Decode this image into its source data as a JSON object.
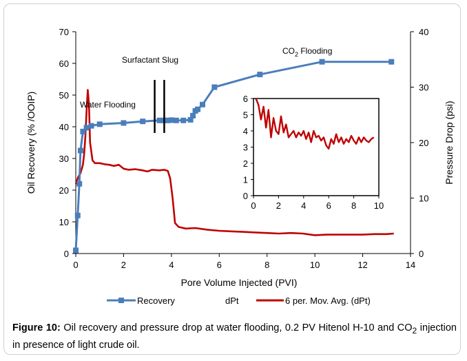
{
  "caption": {
    "label": "Figure 10:",
    "text_pre": " Oil recovery and pressure drop at water flooding, 0.2 PV Hitenol H-10 and CO",
    "sub": "2",
    "text_post": " injection in presence of light crude oil."
  },
  "colors": {
    "recovery": "#4a7ebb",
    "dpt": "#c00000",
    "text": "#000000"
  },
  "chart_data": [
    {
      "type": "line",
      "xlabel": "Pore Volume Injected (PVI)",
      "ylabel": "Oil Recovery (% /OOIP)",
      "y2label": "Pressure Drop (psi)",
      "xlim": [
        0,
        14
      ],
      "ylim": [
        0,
        70
      ],
      "y2lim": [
        0,
        40
      ],
      "xticks": [
        "0",
        "2",
        "4",
        "6",
        "8",
        "10",
        "12",
        "14"
      ],
      "yticks": [
        "0",
        "10",
        "20",
        "30",
        "40",
        "50",
        "60",
        "70"
      ],
      "y2ticks": [
        "0",
        "10",
        "20",
        "30",
        "40"
      ],
      "grid": false,
      "legend_position": "bottom",
      "series": [
        {
          "name": "Recovery",
          "axis": "left",
          "marker": "square",
          "x": [
            0.0,
            0.08,
            0.15,
            0.2,
            0.3,
            0.45,
            0.65,
            1.0,
            2.0,
            2.8,
            3.5,
            3.7,
            3.85,
            4.0,
            4.2,
            4.5,
            4.8,
            4.9,
            5.0,
            5.1,
            5.3,
            5.8,
            7.7,
            10.3,
            13.2
          ],
          "y": [
            1,
            12,
            22,
            32.5,
            38.5,
            39.7,
            40.3,
            40.8,
            41.2,
            41.7,
            42.0,
            42.0,
            42.0,
            42.1,
            42.0,
            42.0,
            42.2,
            43.5,
            45,
            45.5,
            47,
            52.5,
            56.5,
            60.5,
            60.5
          ]
        },
        {
          "name": "dPt",
          "axis": "right",
          "marker": "none",
          "x": [],
          "y": []
        },
        {
          "name": "6 per. Mov. Avg. (dPt)",
          "axis": "right",
          "marker": "none",
          "x": [
            0.0,
            0.1,
            0.2,
            0.3,
            0.35,
            0.4,
            0.45,
            0.5,
            0.55,
            0.6,
            0.7,
            0.8,
            1.0,
            1.2,
            1.4,
            1.6,
            1.8,
            2.0,
            2.2,
            2.5,
            2.8,
            3.0,
            3.2,
            3.5,
            3.7,
            3.85,
            3.95,
            4.05,
            4.15,
            4.3,
            4.6,
            5.0,
            5.5,
            6.0,
            6.5,
            7.0,
            7.5,
            8.0,
            8.5,
            9.0,
            9.5,
            10.0,
            10.5,
            11.0,
            11.5,
            12.0,
            12.5,
            13.0,
            13.3
          ],
          "y": [
            12.5,
            13.8,
            14.5,
            16.0,
            18.0,
            21.0,
            25.5,
            29.5,
            27.0,
            20.0,
            16.8,
            16.3,
            16.3,
            16.1,
            16.0,
            15.8,
            16.0,
            15.3,
            15.1,
            15.2,
            15.0,
            14.8,
            15.1,
            15.0,
            15.1,
            14.9,
            13.5,
            10.0,
            5.5,
            4.8,
            4.5,
            4.6,
            4.3,
            4.1,
            4.0,
            3.9,
            3.8,
            3.7,
            3.6,
            3.7,
            3.6,
            3.3,
            3.4,
            3.4,
            3.4,
            3.4,
            3.5,
            3.5,
            3.6
          ]
        }
      ],
      "annotations": {
        "water_flooding": "Water Flooding",
        "surfactant_slug": "Surfactant Slug",
        "co2_main": "CO",
        "co2_sub": "2",
        "co2_rest": " Flooding"
      }
    },
    {
      "type": "line",
      "title": "",
      "xlim": [
        0,
        10
      ],
      "ylim": [
        0,
        6
      ],
      "xticks": [
        "0",
        "2",
        "4",
        "6",
        "8",
        "10"
      ],
      "yticks": [
        "0",
        "1",
        "2",
        "3",
        "4",
        "5",
        "6"
      ],
      "series": [
        {
          "name": "dPt",
          "x": [
            0.2,
            0.4,
            0.6,
            0.8,
            1.0,
            1.2,
            1.4,
            1.6,
            1.8,
            2.0,
            2.2,
            2.4,
            2.6,
            2.8,
            3.0,
            3.2,
            3.4,
            3.6,
            3.8,
            4.0,
            4.2,
            4.4,
            4.6,
            4.8,
            5.0,
            5.2,
            5.4,
            5.6,
            5.8,
            6.0,
            6.2,
            6.4,
            6.6,
            6.8,
            7.0,
            7.2,
            7.4,
            7.6,
            7.8,
            8.0,
            8.2,
            8.4,
            8.6,
            8.8,
            9.0,
            9.2,
            9.4,
            9.6
          ],
          "y": [
            6.0,
            5.6,
            4.7,
            5.5,
            4.2,
            5.3,
            3.6,
            4.8,
            4.0,
            3.8,
            4.9,
            3.9,
            4.4,
            3.6,
            3.8,
            4.0,
            3.6,
            3.9,
            3.7,
            4.0,
            3.5,
            3.9,
            3.3,
            4.0,
            3.6,
            3.7,
            3.4,
            3.6,
            3.1,
            2.9,
            3.5,
            3.2,
            3.8,
            3.3,
            3.6,
            3.2,
            3.5,
            3.3,
            3.7,
            3.4,
            3.2,
            3.6,
            3.3,
            3.6,
            3.4,
            3.3,
            3.5,
            3.6
          ]
        }
      ]
    }
  ]
}
